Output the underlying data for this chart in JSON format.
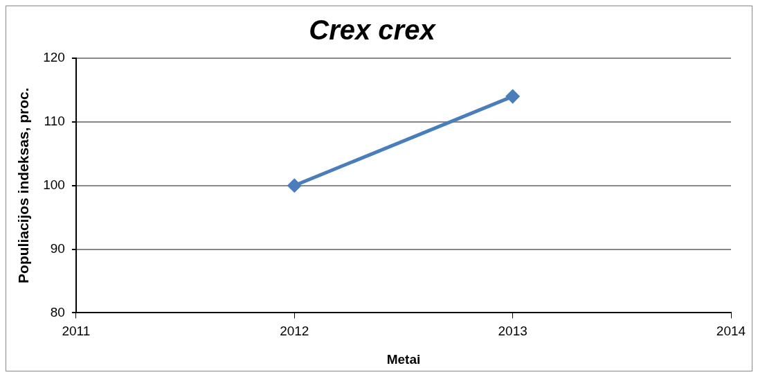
{
  "chart_data": {
    "type": "line",
    "title": "Crex crex",
    "xlabel": "Metai",
    "ylabel": "Populiacijos indeksas, proc.",
    "x": [
      2012,
      2013
    ],
    "series": [
      {
        "color": "#4a7ebb",
        "values": [
          100,
          114
        ]
      }
    ],
    "xlim": [
      2011,
      2014
    ],
    "xticks": [
      2011,
      2012,
      2013,
      2014
    ],
    "ylim": [
      80,
      120
    ],
    "yticks": [
      80,
      90,
      100,
      110,
      120
    ],
    "grid": "y",
    "legend": false,
    "marker": "diamond",
    "line_style": "solid"
  }
}
